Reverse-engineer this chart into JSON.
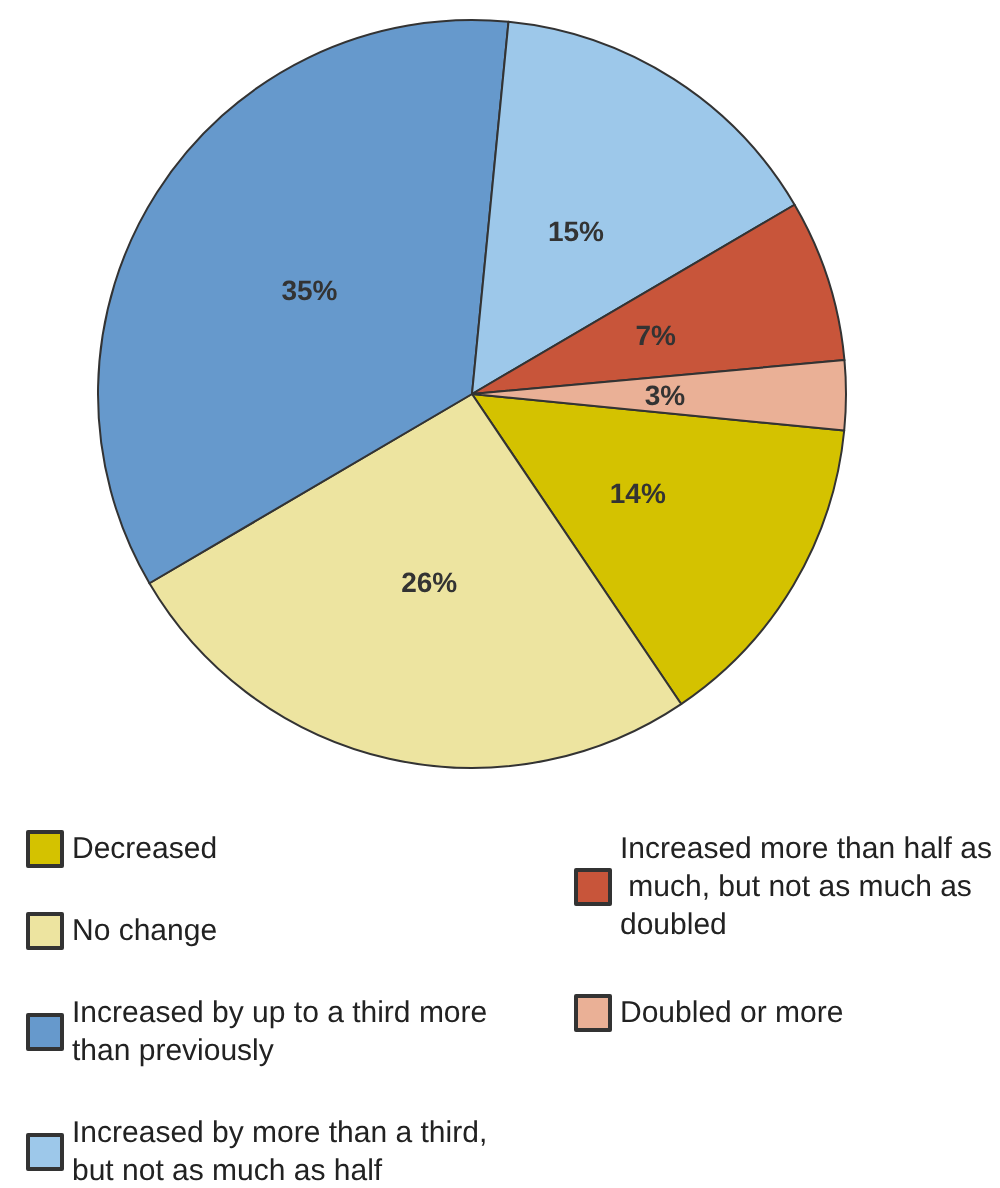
{
  "chart_data": {
    "type": "pie",
    "categories": [
      "Decreased",
      "No change",
      "Increased by up to a third more than previously",
      "Increased by more than a third, but not as much as half",
      "Increased more than half as much, but not as much as doubled",
      "Doubled or more"
    ],
    "values": [
      14,
      26,
      35,
      15,
      7,
      3
    ],
    "colors": [
      "#d4c200",
      "#ede4a0",
      "#6699cc",
      "#9dc8ea",
      "#c8553a",
      "#eab096"
    ],
    "value_labels": [
      "14%",
      "26%",
      "35%",
      "15%",
      "7%",
      "3%"
    ],
    "legend": "bottom"
  }
}
